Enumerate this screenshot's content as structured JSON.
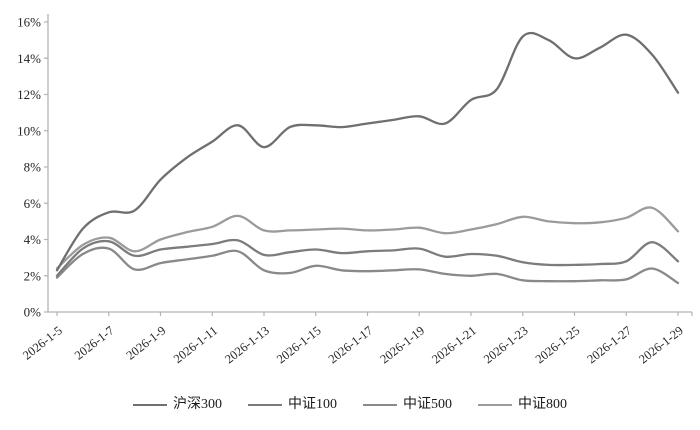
{
  "chart_data": {
    "type": "line",
    "title": "",
    "xlabel": "",
    "ylabel": "",
    "ylim": [
      0,
      16
    ],
    "y_tick_step": 2,
    "y_tick_format": "percent",
    "grid": false,
    "smooth_lines": true,
    "legend_position": "bottom",
    "axis_color": "#b3b3b3",
    "tick_text_color": "#262626",
    "x_label_rotation_deg": -38,
    "x_labels_shown_every": 2,
    "x": [
      "2026-1-5",
      "2026-1-6",
      "2026-1-7",
      "2026-1-8",
      "2026-1-9",
      "2026-1-10",
      "2026-1-11",
      "2026-1-12",
      "2026-1-13",
      "2026-1-14",
      "2026-1-15",
      "2026-1-16",
      "2026-1-17",
      "2026-1-18",
      "2026-1-19",
      "2026-1-20",
      "2026-1-21",
      "2026-1-22",
      "2026-1-23",
      "2026-1-24",
      "2026-1-25",
      "2026-1-26",
      "2026-1-27",
      "2026-1-28",
      "2026-1-29"
    ],
    "y_tick_labels": [
      "0%",
      "2%",
      "4%",
      "6%",
      "8%",
      "10%",
      "12%",
      "14%",
      "16%"
    ],
    "series": [
      {
        "name": "沪深300",
        "color": "#6f6f6f",
        "values": [
          2.3,
          4.6,
          5.5,
          5.6,
          7.3,
          8.5,
          9.4,
          10.3,
          9.1,
          10.2,
          10.3,
          10.2,
          10.4,
          10.6,
          10.8,
          10.4,
          11.7,
          12.3,
          15.2,
          15.0,
          14.0,
          14.6,
          15.3,
          14.2,
          12.1
        ]
      },
      {
        "name": "中证100",
        "color": "#7c7c7c",
        "values": [
          2.0,
          3.5,
          3.9,
          3.1,
          3.45,
          3.6,
          3.75,
          3.95,
          3.15,
          3.3,
          3.45,
          3.25,
          3.35,
          3.4,
          3.5,
          3.05,
          3.2,
          3.1,
          2.75,
          2.6,
          2.6,
          2.65,
          2.8,
          3.85,
          2.8
        ]
      },
      {
        "name": "中证500",
        "color": "#898989",
        "values": [
          1.9,
          3.2,
          3.5,
          2.35,
          2.7,
          2.9,
          3.1,
          3.35,
          2.3,
          2.15,
          2.55,
          2.3,
          2.25,
          2.3,
          2.35,
          2.1,
          2.0,
          2.1,
          1.75,
          1.7,
          1.7,
          1.75,
          1.8,
          2.4,
          1.6
        ]
      },
      {
        "name": "中证800",
        "color": "#9b9b9b",
        "values": [
          2.4,
          3.7,
          4.1,
          3.35,
          4.0,
          4.4,
          4.7,
          5.3,
          4.5,
          4.5,
          4.55,
          4.6,
          4.5,
          4.55,
          4.65,
          4.35,
          4.55,
          4.85,
          5.25,
          5.0,
          4.9,
          4.95,
          5.2,
          5.75,
          4.45
        ]
      }
    ]
  }
}
